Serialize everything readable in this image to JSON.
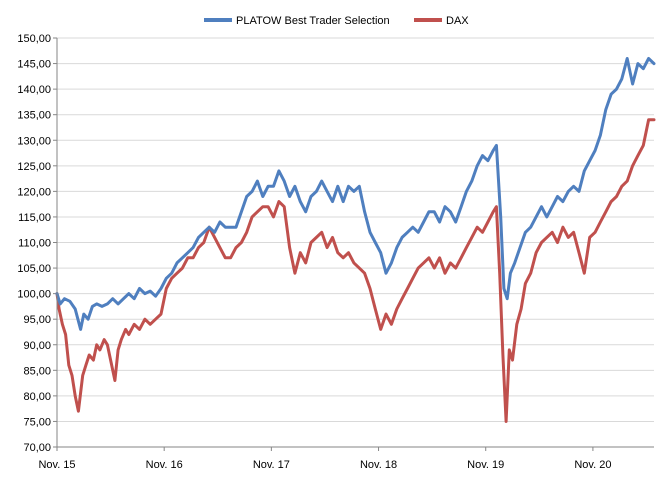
{
  "chart_data": {
    "type": "line",
    "title": "",
    "xlabel": "",
    "ylabel": "",
    "ylim": [
      70,
      150
    ],
    "ytick_step": 5,
    "ytick_labels": [
      "70,00",
      "75,00",
      "80,00",
      "85,00",
      "90,00",
      "95,00",
      "100,00",
      "105,00",
      "110,00",
      "115,00",
      "120,00",
      "125,00",
      "130,00",
      "135,00",
      "140,00",
      "145,00",
      "150,00"
    ],
    "xtick_labels": [
      "Nov. 15",
      "Nov. 16",
      "Nov. 17",
      "Nov. 18",
      "Nov. 19",
      "Nov. 20"
    ],
    "x_range_years": [
      2015.83,
      2021.4
    ],
    "grid": "horizontal",
    "legend": "top",
    "colors": {
      "PLATOW Best Trader Selection": "#4f7fbf",
      "DAX": "#c0504d"
    },
    "series": [
      {
        "name": "PLATOW Best Trader Selection",
        "points": [
          [
            2015.83,
            100
          ],
          [
            2015.86,
            98
          ],
          [
            2015.9,
            99
          ],
          [
            2015.95,
            98.5
          ],
          [
            2016.0,
            97
          ],
          [
            2016.05,
            93
          ],
          [
            2016.08,
            96
          ],
          [
            2016.12,
            95
          ],
          [
            2016.16,
            97.5
          ],
          [
            2016.2,
            98
          ],
          [
            2016.25,
            97.5
          ],
          [
            2016.3,
            98
          ],
          [
            2016.35,
            99
          ],
          [
            2016.4,
            98
          ],
          [
            2016.45,
            99
          ],
          [
            2016.5,
            100
          ],
          [
            2016.55,
            99
          ],
          [
            2016.6,
            101
          ],
          [
            2016.65,
            100
          ],
          [
            2016.7,
            100.5
          ],
          [
            2016.75,
            99.5
          ],
          [
            2016.8,
            101
          ],
          [
            2016.85,
            103
          ],
          [
            2016.9,
            104
          ],
          [
            2016.95,
            106
          ],
          [
            2017.0,
            107
          ],
          [
            2017.05,
            108
          ],
          [
            2017.1,
            109
          ],
          [
            2017.15,
            111
          ],
          [
            2017.2,
            112
          ],
          [
            2017.25,
            113
          ],
          [
            2017.3,
            112
          ],
          [
            2017.35,
            114
          ],
          [
            2017.4,
            113
          ],
          [
            2017.45,
            113
          ],
          [
            2017.5,
            113
          ],
          [
            2017.55,
            116
          ],
          [
            2017.6,
            119
          ],
          [
            2017.65,
            120
          ],
          [
            2017.7,
            122
          ],
          [
            2017.75,
            119
          ],
          [
            2017.8,
            121
          ],
          [
            2017.85,
            121
          ],
          [
            2017.9,
            124
          ],
          [
            2017.95,
            122
          ],
          [
            2018.0,
            119
          ],
          [
            2018.05,
            121
          ],
          [
            2018.1,
            118
          ],
          [
            2018.15,
            116
          ],
          [
            2018.2,
            119
          ],
          [
            2018.25,
            120
          ],
          [
            2018.3,
            122
          ],
          [
            2018.35,
            120
          ],
          [
            2018.4,
            118
          ],
          [
            2018.45,
            121
          ],
          [
            2018.5,
            118
          ],
          [
            2018.55,
            121
          ],
          [
            2018.6,
            120
          ],
          [
            2018.65,
            121
          ],
          [
            2018.7,
            116
          ],
          [
            2018.75,
            112
          ],
          [
            2018.8,
            110
          ],
          [
            2018.85,
            108
          ],
          [
            2018.9,
            104
          ],
          [
            2018.95,
            106
          ],
          [
            2019.0,
            109
          ],
          [
            2019.05,
            111
          ],
          [
            2019.1,
            112
          ],
          [
            2019.15,
            113
          ],
          [
            2019.2,
            112
          ],
          [
            2019.25,
            114
          ],
          [
            2019.3,
            116
          ],
          [
            2019.35,
            116
          ],
          [
            2019.4,
            114
          ],
          [
            2019.45,
            117
          ],
          [
            2019.5,
            116
          ],
          [
            2019.55,
            114
          ],
          [
            2019.6,
            117
          ],
          [
            2019.65,
            120
          ],
          [
            2019.7,
            122
          ],
          [
            2019.75,
            125
          ],
          [
            2019.8,
            127
          ],
          [
            2019.85,
            126
          ],
          [
            2019.9,
            128
          ],
          [
            2019.93,
            129
          ],
          [
            2019.97,
            115
          ],
          [
            2020.0,
            101
          ],
          [
            2020.03,
            99
          ],
          [
            2020.06,
            104
          ],
          [
            2020.1,
            106
          ],
          [
            2020.15,
            109
          ],
          [
            2020.2,
            112
          ],
          [
            2020.25,
            113
          ],
          [
            2020.3,
            115
          ],
          [
            2020.35,
            117
          ],
          [
            2020.4,
            115
          ],
          [
            2020.45,
            117
          ],
          [
            2020.5,
            119
          ],
          [
            2020.55,
            118
          ],
          [
            2020.6,
            120
          ],
          [
            2020.65,
            121
          ],
          [
            2020.7,
            120
          ],
          [
            2020.75,
            124
          ],
          [
            2020.8,
            126
          ],
          [
            2020.85,
            128
          ],
          [
            2020.9,
            131
          ],
          [
            2020.95,
            136
          ],
          [
            2021.0,
            139
          ],
          [
            2021.05,
            140
          ],
          [
            2021.1,
            142
          ],
          [
            2021.15,
            146
          ],
          [
            2021.2,
            141
          ],
          [
            2021.25,
            145
          ],
          [
            2021.3,
            144
          ],
          [
            2021.35,
            146
          ],
          [
            2021.4,
            145
          ]
        ]
      },
      {
        "name": "DAX",
        "points": [
          [
            2015.83,
            100
          ],
          [
            2015.85,
            97
          ],
          [
            2015.88,
            94
          ],
          [
            2015.91,
            92
          ],
          [
            2015.94,
            86
          ],
          [
            2015.97,
            84
          ],
          [
            2016.0,
            80
          ],
          [
            2016.03,
            77
          ],
          [
            2016.07,
            84
          ],
          [
            2016.1,
            86
          ],
          [
            2016.13,
            88
          ],
          [
            2016.17,
            87
          ],
          [
            2016.2,
            90
          ],
          [
            2016.23,
            89
          ],
          [
            2016.27,
            91
          ],
          [
            2016.3,
            90
          ],
          [
            2016.33,
            87
          ],
          [
            2016.37,
            83
          ],
          [
            2016.4,
            89
          ],
          [
            2016.43,
            91
          ],
          [
            2016.47,
            93
          ],
          [
            2016.5,
            92
          ],
          [
            2016.55,
            94
          ],
          [
            2016.6,
            93
          ],
          [
            2016.65,
            95
          ],
          [
            2016.7,
            94
          ],
          [
            2016.75,
            95
          ],
          [
            2016.8,
            96
          ],
          [
            2016.85,
            101
          ],
          [
            2016.9,
            103
          ],
          [
            2016.95,
            104
          ],
          [
            2017.0,
            105
          ],
          [
            2017.05,
            107
          ],
          [
            2017.1,
            107
          ],
          [
            2017.15,
            109
          ],
          [
            2017.2,
            110
          ],
          [
            2017.25,
            113
          ],
          [
            2017.3,
            111
          ],
          [
            2017.35,
            109
          ],
          [
            2017.4,
            107
          ],
          [
            2017.45,
            107
          ],
          [
            2017.5,
            109
          ],
          [
            2017.55,
            110
          ],
          [
            2017.6,
            112
          ],
          [
            2017.65,
            115
          ],
          [
            2017.7,
            116
          ],
          [
            2017.75,
            117
          ],
          [
            2017.8,
            117
          ],
          [
            2017.85,
            115
          ],
          [
            2017.9,
            118
          ],
          [
            2017.95,
            117
          ],
          [
            2018.0,
            109
          ],
          [
            2018.05,
            104
          ],
          [
            2018.1,
            108
          ],
          [
            2018.15,
            106
          ],
          [
            2018.2,
            110
          ],
          [
            2018.25,
            111
          ],
          [
            2018.3,
            112
          ],
          [
            2018.35,
            109
          ],
          [
            2018.4,
            111
          ],
          [
            2018.45,
            108
          ],
          [
            2018.5,
            107
          ],
          [
            2018.55,
            108
          ],
          [
            2018.6,
            106
          ],
          [
            2018.65,
            105
          ],
          [
            2018.7,
            104
          ],
          [
            2018.75,
            101
          ],
          [
            2018.8,
            97
          ],
          [
            2018.85,
            93
          ],
          [
            2018.9,
            96
          ],
          [
            2018.95,
            94
          ],
          [
            2019.0,
            97
          ],
          [
            2019.05,
            99
          ],
          [
            2019.1,
            101
          ],
          [
            2019.15,
            103
          ],
          [
            2019.2,
            105
          ],
          [
            2019.25,
            106
          ],
          [
            2019.3,
            107
          ],
          [
            2019.35,
            105
          ],
          [
            2019.4,
            107
          ],
          [
            2019.45,
            104
          ],
          [
            2019.5,
            106
          ],
          [
            2019.55,
            105
          ],
          [
            2019.6,
            107
          ],
          [
            2019.65,
            109
          ],
          [
            2019.7,
            111
          ],
          [
            2019.75,
            113
          ],
          [
            2019.8,
            112
          ],
          [
            2019.85,
            114
          ],
          [
            2019.9,
            116
          ],
          [
            2019.93,
            117
          ],
          [
            2019.96,
            104
          ],
          [
            2019.99,
            88
          ],
          [
            2020.02,
            75
          ],
          [
            2020.05,
            89
          ],
          [
            2020.08,
            87
          ],
          [
            2020.12,
            94
          ],
          [
            2020.16,
            97
          ],
          [
            2020.2,
            102
          ],
          [
            2020.25,
            104
          ],
          [
            2020.3,
            108
          ],
          [
            2020.35,
            110
          ],
          [
            2020.4,
            111
          ],
          [
            2020.45,
            112
          ],
          [
            2020.5,
            110
          ],
          [
            2020.55,
            113
          ],
          [
            2020.6,
            111
          ],
          [
            2020.65,
            112
          ],
          [
            2020.7,
            108
          ],
          [
            2020.75,
            104
          ],
          [
            2020.8,
            111
          ],
          [
            2020.85,
            112
          ],
          [
            2020.9,
            114
          ],
          [
            2020.95,
            116
          ],
          [
            2021.0,
            118
          ],
          [
            2021.05,
            119
          ],
          [
            2021.1,
            121
          ],
          [
            2021.15,
            122
          ],
          [
            2021.2,
            125
          ],
          [
            2021.25,
            127
          ],
          [
            2021.3,
            129
          ],
          [
            2021.35,
            134
          ],
          [
            2021.4,
            134
          ]
        ]
      }
    ]
  }
}
